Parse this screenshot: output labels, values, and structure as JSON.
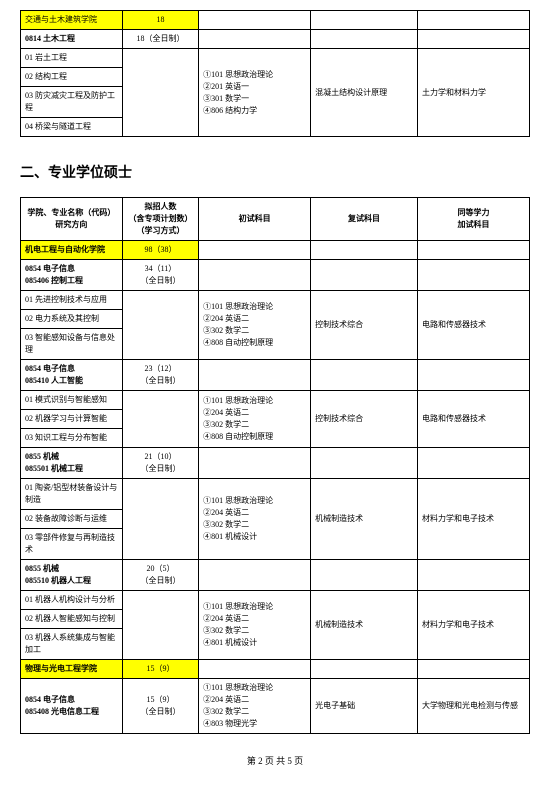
{
  "table1": {
    "rows": [
      {
        "c1": "交通与土木建筑学院",
        "c1cls": "yellow",
        "c2": "18",
        "c2cls": "yellow center"
      },
      {
        "c1": "0814 土木工程",
        "c1cls": "bold",
        "c2": "18（全日制）",
        "c2cls": "center"
      },
      {
        "c1": "01 岩土工程",
        "c3": "①101 思想政治理论\n②201 英语一\n③301 数学一\n④806 结构力学",
        "c3rs": 4,
        "c4": "混凝土结构设计原理",
        "c4rs": 4,
        "c5": "土力学和材料力学",
        "c5rs": 4
      },
      {
        "c1": "02 结构工程"
      },
      {
        "c1": "03 防灾减灾工程及防护工程"
      },
      {
        "c1": "04 桥梁与隧道工程"
      }
    ],
    "col2block_rs": 4
  },
  "sectionTitle": "二、专业学位硕士",
  "table2": {
    "header": {
      "c1": "学院、专业名称（代码）\n研究方向",
      "c2": "拟招人数\n（含专项计划数）\n（学习方式）",
      "c3": "初试科目",
      "c4": "复试科目",
      "c5": "同等学力\n加试科目"
    },
    "rows": [
      {
        "c1": "机电工程与自动化学院",
        "c1cls": "yellow bold",
        "c2": "98（38）",
        "c2cls": "yellow center",
        "span4": true
      },
      {
        "c1": "0854 电子信息\n085406 控制工程",
        "c1cls": "bold",
        "c2": "34（11）\n（全日制）",
        "c2cls": "center",
        "span4": true
      },
      {
        "c1": "01 先进控制技术与应用",
        "c2rs": 3,
        "c3": "①101 思想政治理论\n②204 英语二\n③302 数学二\n④808 自动控制原理",
        "c3rs": 3,
        "c4": "控制技术综合",
        "c4rs": 3,
        "c5": "电路和传感器技术",
        "c5rs": 3
      },
      {
        "c1": "02 电力系统及其控制"
      },
      {
        "c1": "03 智能感知设备与信息处理"
      },
      {
        "c1": "0854 电子信息\n085410 人工智能",
        "c1cls": "bold",
        "c2": "23（12）\n（全日制）",
        "c2cls": "center",
        "span4": true
      },
      {
        "c1": "01 模式识别与智能感知",
        "c2rs": 3,
        "c3": "①101 思想政治理论\n②204 英语二\n③302 数学二\n④808 自动控制原理",
        "c3rs": 3,
        "c4": "控制技术综合",
        "c4rs": 3,
        "c5": "电路和传感器技术",
        "c5rs": 3
      },
      {
        "c1": "02 机器学习与计算智能"
      },
      {
        "c1": "03 知识工程与分布智能"
      },
      {
        "c1": "0855 机械\n085501 机械工程",
        "c1cls": "bold",
        "c2": "21（10）\n（全日制）",
        "c2cls": "center",
        "span4": true
      },
      {
        "c1": "01 陶瓷/铝型材装备设计与制造",
        "c2rs": 3,
        "c3": "①101 思想政治理论\n②204 英语二\n③302 数学二\n④801 机械设计",
        "c3rs": 3,
        "c4": "机械制造技术",
        "c4rs": 3,
        "c5": "材料力学和电子技术",
        "c5rs": 3
      },
      {
        "c1": "02 装备故障诊断与运维"
      },
      {
        "c1": "03 零部件修复与再制造技术"
      },
      {
        "c1": "0855 机械\n085510 机器人工程",
        "c1cls": "bold",
        "c2": "20（5）\n（全日制）",
        "c2cls": "center",
        "span4": true
      },
      {
        "c1": "01 机器人机构设计与分析",
        "c2rs": 3,
        "c3": "①101 思想政治理论\n②204 英语二\n③302 数学二\n④801 机械设计",
        "c3rs": 3,
        "c4": "机械制造技术",
        "c4rs": 3,
        "c5": "材料力学和电子技术",
        "c5rs": 3
      },
      {
        "c1": "02 机器人智能感知与控制"
      },
      {
        "c1": "03 机器人系统集成与智能加工"
      },
      {
        "c1": "物理与光电工程学院",
        "c1cls": "yellow bold",
        "c2": "15（9）",
        "c2cls": "yellow center",
        "span4": true
      },
      {
        "c1": "0854 电子信息\n085408 光电信息工程",
        "c1cls": "bold",
        "c2": "15（9）\n（全日制）",
        "c2cls": "center",
        "c3": "①101 思想政治理论\n②204 英语二\n③302 数学二\n④803 物理光学",
        "c4": "光电子基础",
        "c5": "大学物理和光电检测与传感"
      }
    ]
  },
  "footer": "第 2 页 共 5 页"
}
